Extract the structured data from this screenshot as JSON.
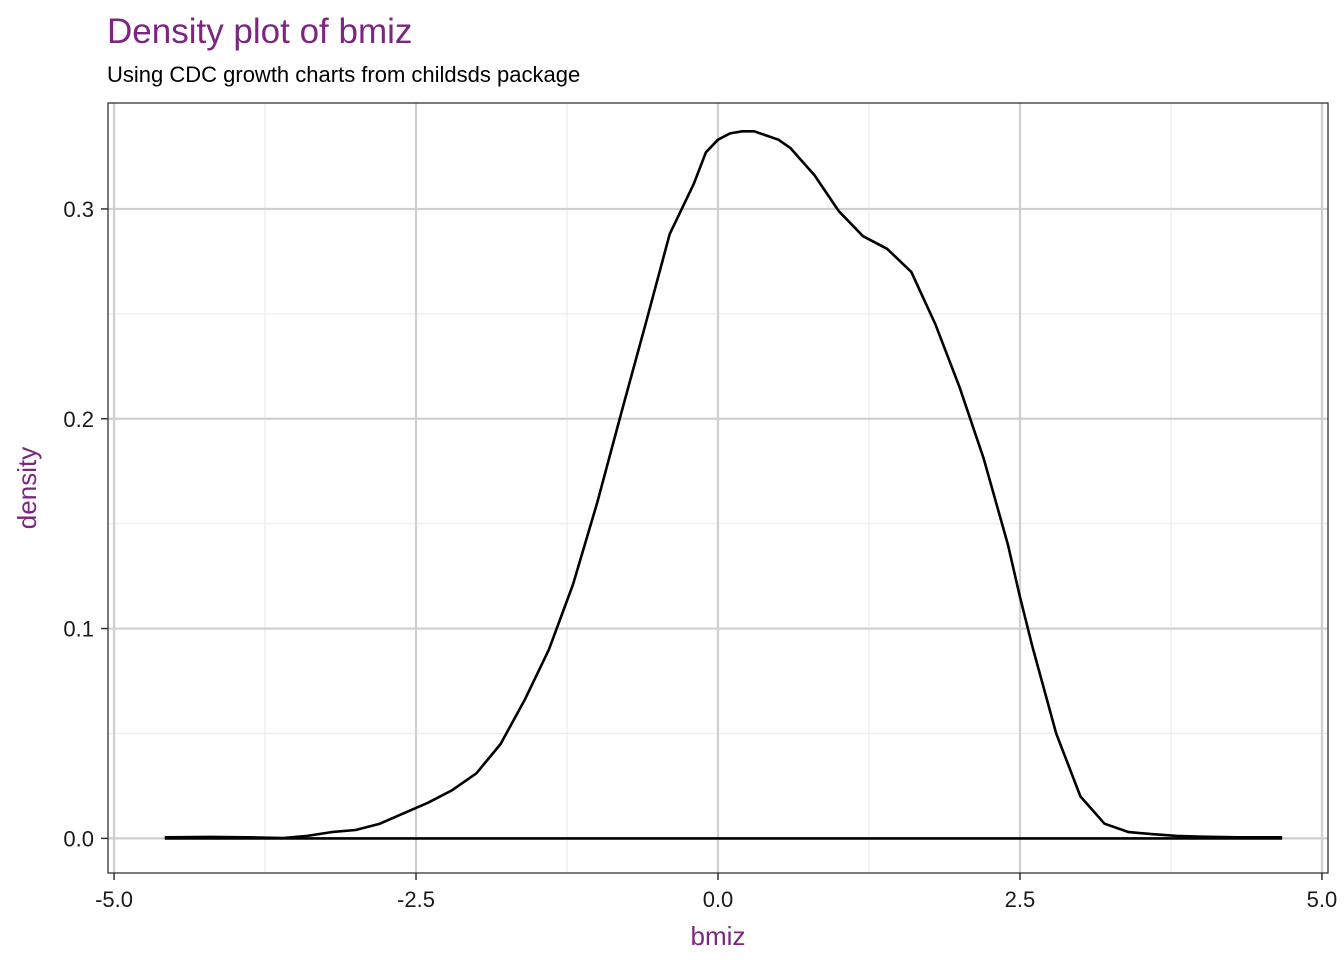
{
  "colors": {
    "accent": "#7b267f",
    "grid_major": "#cfcfcf",
    "grid_minor": "#ececec",
    "line": "#000000"
  },
  "chart_data": {
    "type": "line",
    "title": "Density plot of bmiz",
    "subtitle": "Using CDC growth charts from childsds package",
    "xlabel": "bmiz",
    "ylabel": "density",
    "xlim": [
      -5.05,
      5.05
    ],
    "ylim": [
      -0.0165,
      0.3505
    ],
    "x_ticks": [
      -5.0,
      -2.5,
      0.0,
      2.5,
      5.0
    ],
    "x_tick_labels": [
      "-5.0",
      "-2.5",
      "0.0",
      "2.5",
      "5.0"
    ],
    "y_ticks": [
      0.0,
      0.1,
      0.2,
      0.3
    ],
    "y_tick_labels": [
      "0.0",
      "0.1",
      "0.2",
      "0.3"
    ],
    "grid": true,
    "legend": "none",
    "series": [
      {
        "x": [
          -4.58,
          -4.2,
          -3.9,
          -3.6,
          -3.4,
          -3.2,
          -3.0,
          -2.8,
          -2.6,
          -2.4,
          -2.2,
          -2.0,
          -1.8,
          -1.6,
          -1.4,
          -1.2,
          -1.0,
          -0.8,
          -0.6,
          -0.4,
          -0.2,
          -0.1,
          0.0,
          0.1,
          0.2,
          0.3,
          0.4,
          0.5,
          0.6,
          0.8,
          1.0,
          1.2,
          1.4,
          1.6,
          1.8,
          2.0,
          2.2,
          2.4,
          2.5,
          2.6,
          2.8,
          3.0,
          3.2,
          3.4,
          3.6,
          3.8,
          4.0,
          4.3,
          4.67
        ],
        "y": [
          0.0005,
          0.0007,
          0.0005,
          0.0002,
          0.0012,
          0.003,
          0.004,
          0.007,
          0.012,
          0.017,
          0.023,
          0.031,
          0.045,
          0.066,
          0.09,
          0.121,
          0.16,
          0.203,
          0.245,
          0.288,
          0.312,
          0.327,
          0.333,
          0.336,
          0.337,
          0.337,
          0.335,
          0.333,
          0.329,
          0.316,
          0.299,
          0.287,
          0.281,
          0.27,
          0.245,
          0.215,
          0.181,
          0.14,
          0.115,
          0.092,
          0.05,
          0.02,
          0.007,
          0.003,
          0.002,
          0.0012,
          0.0008,
          0.0005,
          0.0005
        ]
      }
    ]
  }
}
